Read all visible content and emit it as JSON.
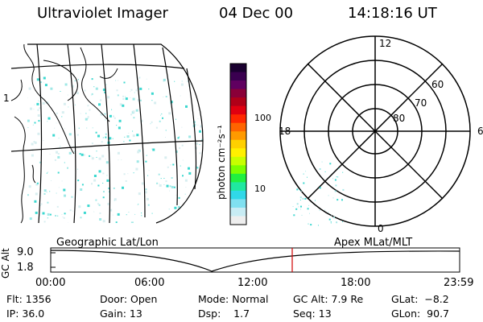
{
  "header": {
    "instrument": "Ultraviolet Imager",
    "date": "04 Dec 00",
    "time": "14:18:16 UT"
  },
  "geo_panel": {
    "label": "Geographic Lat/Lon",
    "edge_label": "1\u0002",
    "land_color": "#000000",
    "emission_color": "#3cd8d0"
  },
  "color_bar": {
    "unit_label": "photon cm⁻²s⁻¹",
    "ticks": [
      "100",
      "10"
    ],
    "colors": [
      "#1a0030",
      "#3a0050",
      "#600060",
      "#8a0038",
      "#b00018",
      "#e00010",
      "#ff2800",
      "#ff6400",
      "#ff9a00",
      "#ffd000",
      "#fff000",
      "#c8ff00",
      "#7cff00",
      "#20f040",
      "#20e8a0",
      "#30d8e8",
      "#80e0f0",
      "#c8ecf4",
      "#eeeeee"
    ]
  },
  "polar_plot": {
    "label": "Apex MLat/MLT",
    "mlt_labels": {
      "top": "12",
      "right": "6",
      "bottom": "0",
      "left": "18"
    },
    "lat_labels": [
      "60",
      "70",
      "80"
    ]
  },
  "altitude_strip": {
    "axis_label": "GC Alt",
    "y_top": "9.0",
    "y_bottom": "1.8",
    "x_ticks": [
      "00:00",
      "06:00",
      "12:00",
      "18:00",
      "23:59"
    ],
    "marker_color": "#d00000"
  },
  "status": {
    "flt": "Flt: 1356",
    "ip": "IP: 36.0",
    "door": "Door: Open",
    "gain": "Gain: 13",
    "mode": "Mode: Normal",
    "dsp": "Dsp:    1.7",
    "gc_alt": "GC Alt: 7.9 Re",
    "seq": "Seq: 13",
    "glat": "GLat:  −8.2",
    "glon": "GLon:  90.7"
  }
}
